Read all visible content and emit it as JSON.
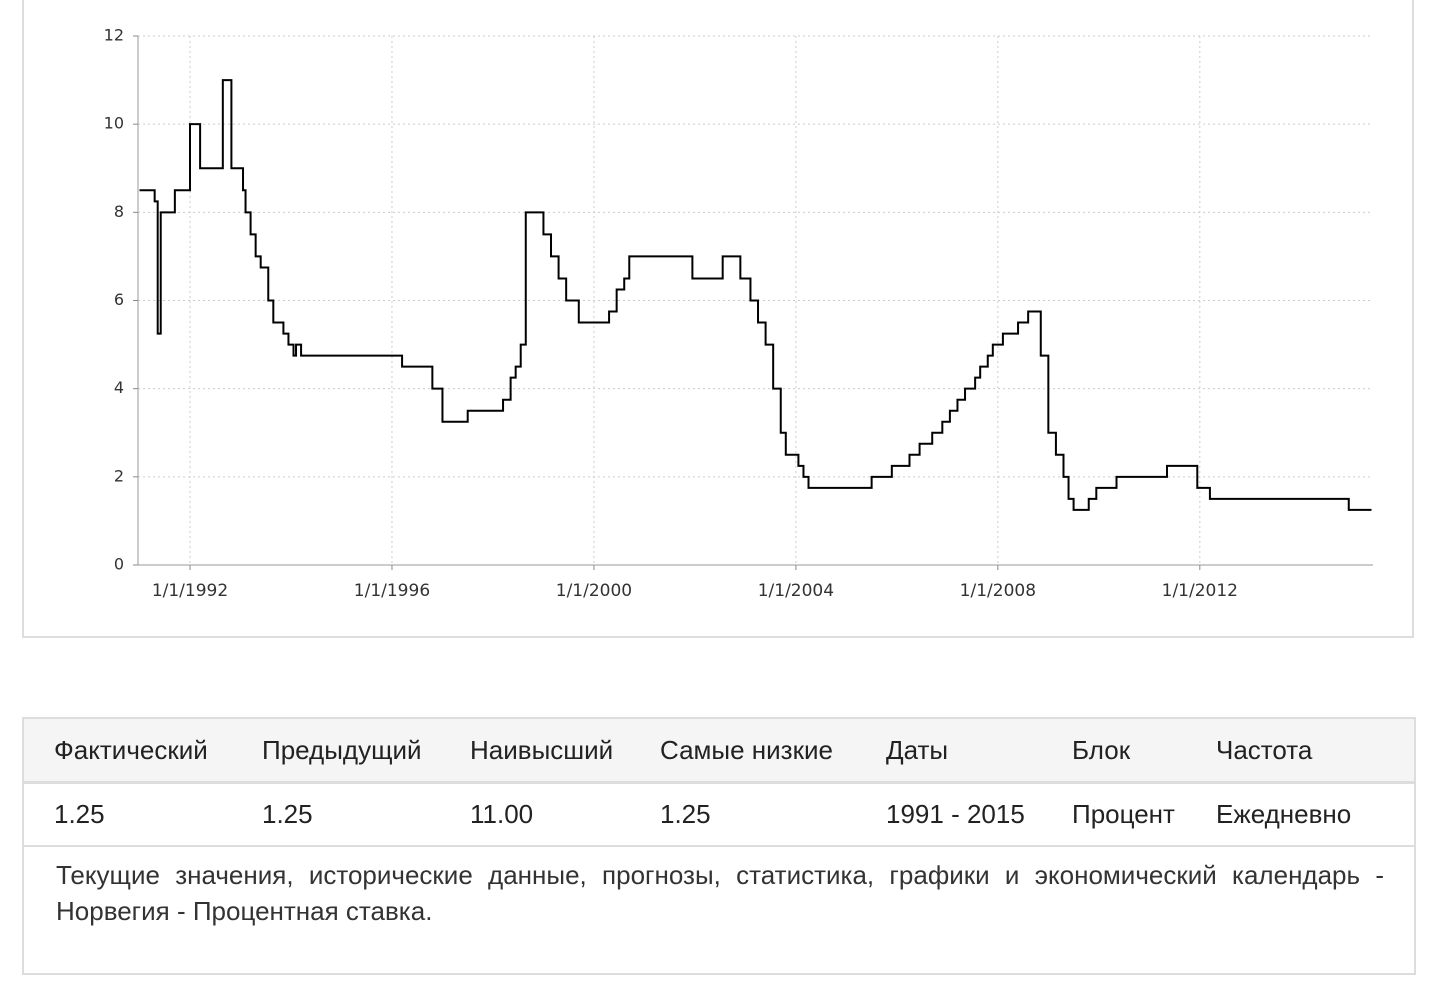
{
  "chart_data": {
    "type": "line",
    "step": "after",
    "color": "#000000",
    "grid": true,
    "x": [
      1991.0,
      1991.3,
      1991.36,
      1991.42,
      1991.7,
      1992.0,
      1992.2,
      1992.65,
      1992.82,
      1993.05,
      1993.1,
      1993.2,
      1993.3,
      1993.4,
      1993.55,
      1993.65,
      1993.85,
      1993.95,
      1994.05,
      1994.1,
      1994.2,
      1996.2,
      1996.8,
      1997.0,
      1997.5,
      1998.2,
      1998.35,
      1998.45,
      1998.55,
      1998.65,
      1999.0,
      1999.15,
      1999.3,
      1999.45,
      1999.7,
      2000.3,
      2000.45,
      2000.6,
      2000.7,
      2001.95,
      2002.55,
      2002.9,
      2003.1,
      2003.25,
      2003.4,
      2003.55,
      2003.7,
      2003.8,
      2004.05,
      2004.15,
      2004.25,
      2005.5,
      2005.9,
      2006.25,
      2006.45,
      2006.7,
      2006.9,
      2007.05,
      2007.2,
      2007.35,
      2007.55,
      2007.65,
      2007.8,
      2007.9,
      2008.1,
      2008.4,
      2008.6,
      2008.85,
      2009.0,
      2009.15,
      2009.3,
      2009.4,
      2009.5,
      2009.8,
      2009.95,
      2010.35,
      2011.35,
      2011.95,
      2012.2,
      2014.95,
      2015.4
    ],
    "values": [
      8.5,
      8.25,
      5.25,
      8.0,
      8.5,
      10.0,
      9.0,
      11.0,
      9.0,
      8.5,
      8.0,
      7.5,
      7.0,
      6.75,
      6.0,
      5.5,
      5.25,
      5.0,
      4.75,
      5.0,
      4.75,
      4.5,
      4.0,
      3.25,
      3.5,
      3.75,
      4.25,
      4.5,
      5.0,
      8.0,
      7.5,
      7.0,
      6.5,
      6.0,
      5.5,
      5.75,
      6.25,
      6.5,
      7.0,
      6.5,
      7.0,
      6.5,
      6.0,
      5.5,
      5.0,
      4.0,
      3.0,
      2.5,
      2.25,
      2.0,
      1.75,
      2.0,
      2.25,
      2.5,
      2.75,
      3.0,
      3.25,
      3.5,
      3.75,
      4.0,
      4.25,
      4.5,
      4.75,
      5.0,
      5.25,
      5.5,
      5.75,
      4.75,
      3.0,
      2.5,
      2.0,
      1.5,
      1.25,
      1.5,
      1.75,
      2.0,
      2.25,
      1.75,
      1.5,
      1.25,
      1.25
    ],
    "xlim": [
      1990.97,
      2015.43
    ],
    "ylim": [
      0,
      12
    ],
    "xticks": [
      {
        "value": 1992,
        "label": "1/1/1992"
      },
      {
        "value": 1996,
        "label": "1/1/1996"
      },
      {
        "value": 2000,
        "label": "1/1/2000"
      },
      {
        "value": 2004,
        "label": "1/1/2004"
      },
      {
        "value": 2008,
        "label": "1/1/2008"
      },
      {
        "value": 2012,
        "label": "1/1/2012"
      }
    ],
    "yticks": [
      0,
      2,
      4,
      6,
      8,
      10,
      12
    ]
  },
  "table": {
    "header": [
      "Фактический",
      "Предыдущий",
      "Наивысший",
      "Самые низкие",
      "Даты",
      "Блок",
      "Частота"
    ],
    "row": [
      "1.25",
      "1.25",
      "11.00",
      "1.25",
      "1991 - 2015",
      "Процент",
      "Ежедневно"
    ]
  },
  "description": "Текущие значения, исторические данные, прогнозы, статистика, графики и экономический календарь - Норвегия - Процентная ставка."
}
